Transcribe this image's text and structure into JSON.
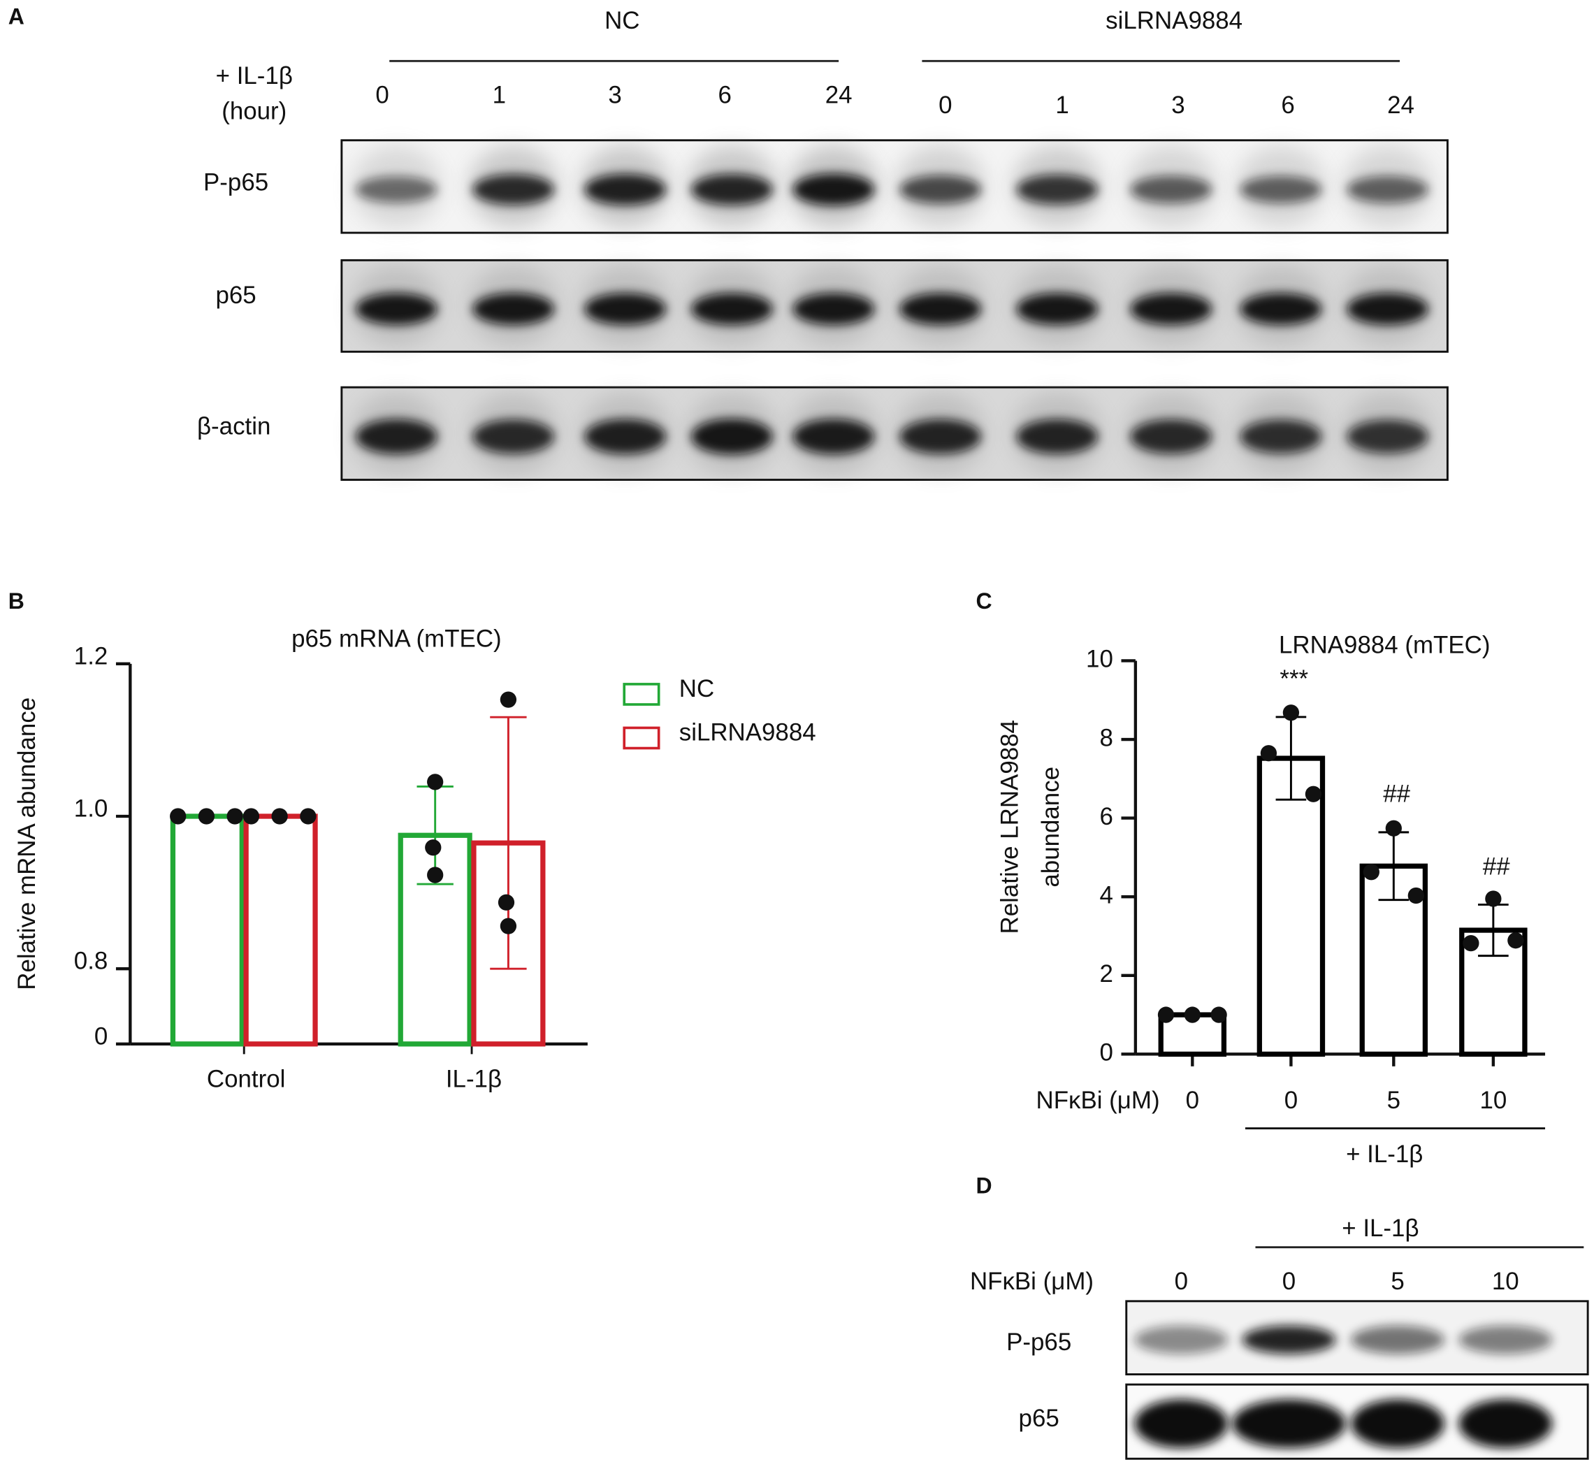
{
  "panel_a": {
    "letter": "A",
    "treatment": "+ IL-1β",
    "unit": "(hour)",
    "groups": [
      {
        "name": "NC",
        "times": [
          "0",
          "1",
          "3",
          "6",
          "24"
        ]
      },
      {
        "name": "siLRNA9884",
        "times": [
          "0",
          "1",
          "3",
          "6",
          "24"
        ]
      }
    ],
    "rows": [
      "P-p65",
      "p65",
      "β-actin"
    ]
  },
  "chart_data": [
    {
      "letter": "B",
      "type": "bar",
      "title": "p65 mRNA (mTEC)",
      "ylabel": "Relative mRNA abundance",
      "categories": [
        "Control",
        "IL-1β"
      ],
      "series": [
        {
          "name": "NC",
          "color": "#22a836",
          "values": [
            1.0,
            0.975
          ],
          "errors": [
            0,
            0.064
          ],
          "points": [
            [
              1,
              1,
              1
            ],
            [
              1.045,
              0.959,
              0.923
            ]
          ]
        },
        {
          "name": "siLRNA9884",
          "color": "#d0202a",
          "values": [
            1.0,
            0.965
          ],
          "errors": [
            0,
            0.165
          ],
          "points": [
            [
              1,
              1,
              1
            ],
            [
              1.153,
              0.887,
              0.856
            ]
          ]
        }
      ],
      "ylim": [
        0,
        1.2
      ],
      "y_axis_break": 0.8,
      "yticks": [
        0,
        0.8,
        {
          "value": 1,
          "label": "1.0"
        },
        1.2
      ],
      "legend": "right"
    },
    {
      "letter": "C",
      "type": "bar",
      "title": "LRNA9884 (mTEC)",
      "ylabel": [
        "Relative LRNA9884",
        "abundance"
      ],
      "xlabel": "NFκBi (μM)",
      "categories": [
        "0",
        "0",
        "5",
        "10"
      ],
      "values": [
        1.0,
        7.52,
        4.78,
        3.15
      ],
      "errors": [
        0,
        1.05,
        0.86,
        0.65
      ],
      "points": [
        [
          1,
          1,
          1
        ],
        [
          8.68,
          7.65,
          6.61
        ],
        [
          5.74,
          4.63,
          4.03
        ],
        [
          3.95,
          2.82,
          2.89
        ]
      ],
      "annotations": [
        null,
        "***",
        "##",
        "##"
      ],
      "group_label": "+ IL-1β",
      "color": "#000000",
      "ylim": [
        0,
        10
      ],
      "yticks": [
        0,
        2,
        4,
        6,
        8,
        10
      ]
    }
  ],
  "panel_d": {
    "letter": "D",
    "treatment": "+ IL-1β",
    "dose_label": "NFκBi (μM)",
    "doses": [
      "0",
      "0",
      "5",
      "10"
    ],
    "rows": [
      "P-p65",
      "p65"
    ]
  }
}
